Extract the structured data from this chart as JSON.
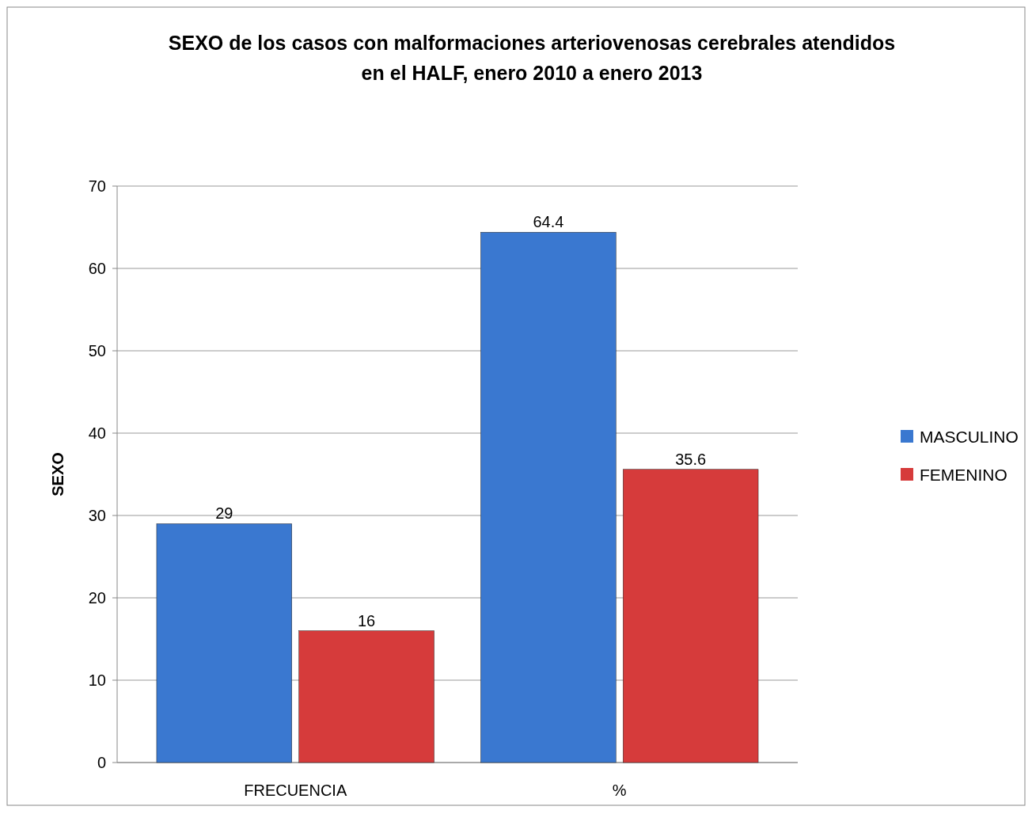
{
  "chart_data": {
    "type": "bar",
    "title": "SEXO de los casos con malformaciones  arteriovenosas cerebrales atendidos\nen el  HALF,  enero 2010 a enero 2013",
    "ylabel": "SEXO",
    "categories": [
      "FRECUENCIA",
      "%"
    ],
    "series": [
      {
        "name": "MASCULINO",
        "color": "#3a78d0",
        "values": [
          29,
          64.4
        ]
      },
      {
        "name": "FEMENINO",
        "color": "#d63b3b",
        "values": [
          16,
          35.6
        ]
      }
    ],
    "ylim": [
      0,
      70
    ],
    "yticks": [
      0,
      10,
      20,
      30,
      40,
      50,
      60,
      70
    ],
    "grid": "y",
    "legend": "right",
    "data_labels": true
  }
}
